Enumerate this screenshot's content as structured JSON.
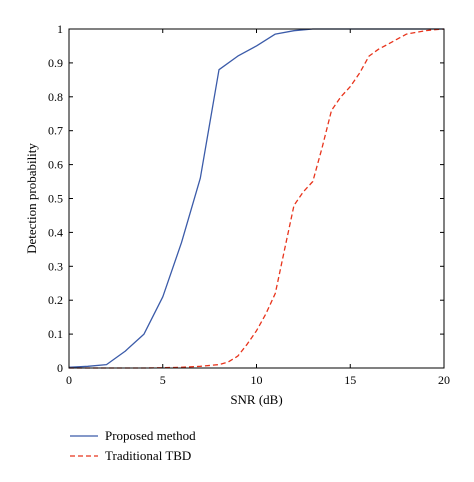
{
  "chart_data": {
    "type": "line",
    "title": "",
    "xlabel": "SNR (dB)",
    "ylabel": "Detection probability",
    "xlim": [
      0,
      20
    ],
    "ylim": [
      0,
      1
    ],
    "xticks": [
      0,
      5,
      10,
      15,
      20
    ],
    "yticks": [
      0,
      0.1,
      0.2,
      0.3,
      0.4,
      0.5,
      0.6,
      0.7,
      0.8,
      0.9,
      1
    ],
    "xtick_labels": [
      "0",
      "5",
      "10",
      "15",
      "20"
    ],
    "ytick_labels": [
      "0",
      "0.1",
      "0.2",
      "0.3",
      "0.4",
      "0.5",
      "0.6",
      "0.7",
      "0.8",
      "0.9",
      "1"
    ],
    "grid": false,
    "legend_position": "bottom-left, below plot",
    "series": [
      {
        "name": "Proposed method",
        "color": "#3b5ba9",
        "dash": "solid",
        "x": [
          0,
          1,
          2,
          3,
          4,
          5,
          6,
          7,
          8,
          9,
          10,
          11,
          12,
          13,
          14,
          15,
          16,
          17,
          18,
          19,
          20
        ],
        "y": [
          0.002,
          0.005,
          0.01,
          0.05,
          0.1,
          0.21,
          0.37,
          0.56,
          0.88,
          0.92,
          0.95,
          0.985,
          0.995,
          1.0,
          1.0,
          1.0,
          1.0,
          1.0,
          1.0,
          1.0,
          1.0
        ]
      },
      {
        "name": "Traditional TBD",
        "color": "#e8341c",
        "dash": "dashed",
        "x": [
          0,
          1,
          2,
          3,
          4,
          5,
          6,
          7,
          8,
          8.5,
          9,
          9.5,
          10,
          10.5,
          11,
          11.5,
          12,
          12.5,
          13,
          13.5,
          14,
          14.5,
          15,
          15.5,
          16,
          16.5,
          17,
          17.5,
          18,
          18.5,
          19,
          19.5,
          20
        ],
        "y": [
          0,
          0,
          0,
          0,
          0,
          0.001,
          0.002,
          0.005,
          0.01,
          0.018,
          0.035,
          0.07,
          0.11,
          0.16,
          0.22,
          0.35,
          0.48,
          0.52,
          0.55,
          0.65,
          0.76,
          0.8,
          0.83,
          0.87,
          0.92,
          0.94,
          0.955,
          0.97,
          0.985,
          0.99,
          0.995,
          0.998,
          1.0
        ]
      }
    ]
  }
}
